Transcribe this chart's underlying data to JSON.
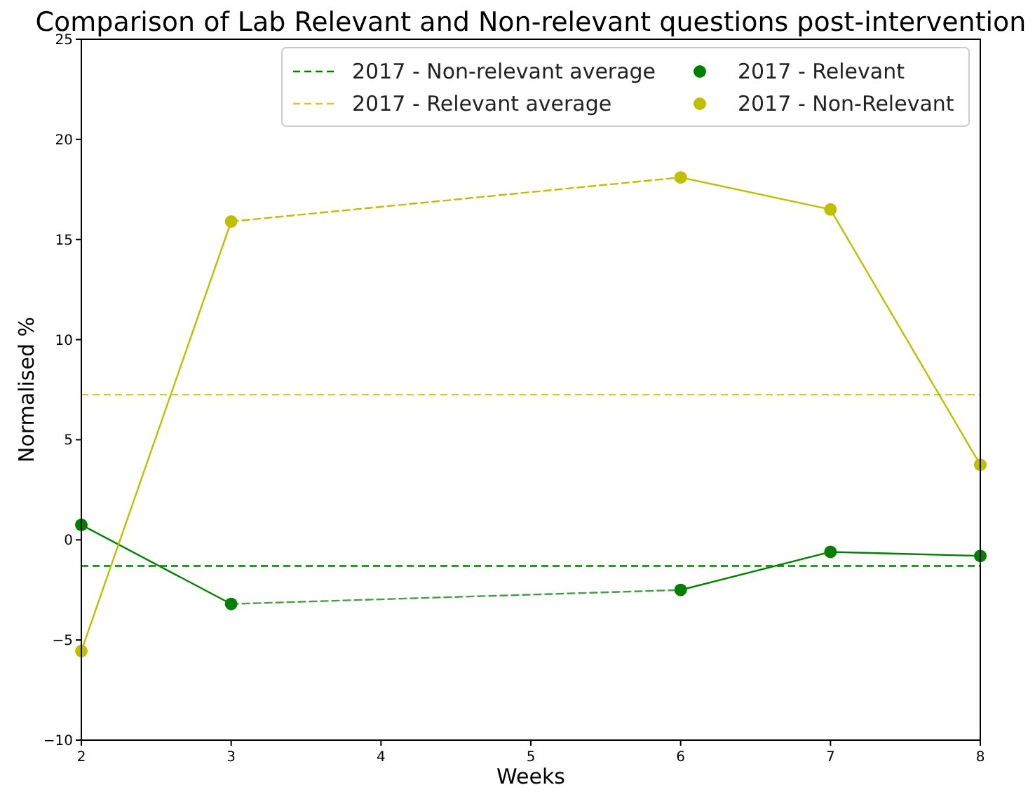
{
  "chart_data": {
    "type": "line",
    "title": "Comparison of Lab Relevant and Non-relevant questions post-intervention",
    "xlabel": "Weeks",
    "ylabel": "Normalised %",
    "xlim": [
      2,
      8
    ],
    "xticks": [
      2,
      3,
      4,
      5,
      6,
      7,
      8
    ],
    "ylim": [
      -10,
      25
    ],
    "yticks": [
      -10,
      -5,
      0,
      5,
      10,
      15,
      20,
      25
    ],
    "grid": false,
    "legend": "top right",
    "ref_lines": [
      {
        "axis": "y",
        "value": -1.3,
        "label": "2017 - Non-relevant average",
        "color": "#008000",
        "line_style": "dashed"
      },
      {
        "axis": "y",
        "value": 7.25,
        "label": "2017 - Relevant average",
        "color": "#cccc33",
        "line_style": "dashed"
      }
    ],
    "series": [
      {
        "color": "#008000",
        "x": [
          2,
          3
        ],
        "values": [
          0.75,
          -3.2
        ],
        "line_style": "solid",
        "marker": "none"
      },
      {
        "color": "#44a044",
        "x": [
          3,
          6
        ],
        "values": [
          -3.2,
          -2.5
        ],
        "line_style": "dashed",
        "marker": "none"
      },
      {
        "color": "#008000",
        "x": [
          6,
          7,
          8
        ],
        "values": [
          -2.5,
          -0.6,
          -0.8
        ],
        "line_style": "solid",
        "marker": "none"
      },
      {
        "color": "#bfbf00",
        "x": [
          2,
          3
        ],
        "values": [
          -5.55,
          15.9
        ],
        "line_style": "solid",
        "marker": "none"
      },
      {
        "color": "#bfbf00",
        "x": [
          3,
          6
        ],
        "values": [
          15.9,
          18.1
        ],
        "line_style": "dashed",
        "marker": "none"
      },
      {
        "color": "#bfbf00",
        "x": [
          6,
          7,
          8
        ],
        "values": [
          18.1,
          16.5,
          3.75
        ],
        "line_style": "solid",
        "marker": "none"
      },
      {
        "name": "2017 - Relevant",
        "type": "scatter",
        "color": "#008000",
        "x": [
          2,
          3,
          6,
          7,
          8
        ],
        "values": [
          0.75,
          -3.2,
          -2.5,
          -0.6,
          -0.8
        ],
        "marker": "circle"
      },
      {
        "name": "2017 - Non-Relevant",
        "type": "scatter",
        "color": "#bfbf00",
        "x": [
          2,
          3,
          6,
          7,
          8
        ],
        "values": [
          -5.55,
          15.9,
          18.1,
          16.5,
          3.75
        ],
        "marker": "circle"
      }
    ]
  }
}
